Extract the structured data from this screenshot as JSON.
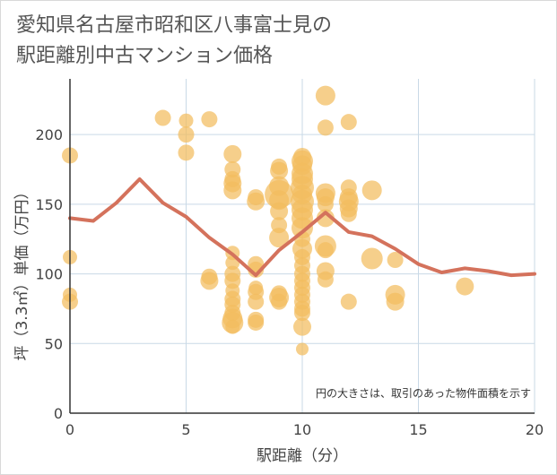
{
  "chart_data": {
    "type": "scatter",
    "title_lines": [
      "愛知県名古屋市昭和区八事富士見の",
      "駅距離別中古マンション価格"
    ],
    "xlabel": "駅距離（分）",
    "ylabel": "坪（3.3㎡）単価（万円）",
    "xlim": [
      0,
      20
    ],
    "ylim": [
      0,
      240
    ],
    "xticks": [
      0,
      5,
      10,
      15,
      20
    ],
    "yticks": [
      0,
      50,
      100,
      150,
      200
    ],
    "grid": true,
    "note": "円の大きさは、取引のあった物件面積を示す",
    "colors": {
      "bubble": "#f3bd5e",
      "line": "#d4725c",
      "grid": "#c9d9e6",
      "axis": "#333333"
    },
    "series": [
      {
        "type": "bubble",
        "points": [
          {
            "x": 0,
            "y": 185,
            "s": 9
          },
          {
            "x": 0,
            "y": 112,
            "s": 8
          },
          {
            "x": 0,
            "y": 85,
            "s": 8
          },
          {
            "x": 0,
            "y": 80,
            "s": 9
          },
          {
            "x": 4,
            "y": 212,
            "s": 9
          },
          {
            "x": 5,
            "y": 210,
            "s": 8
          },
          {
            "x": 5,
            "y": 200,
            "s": 9
          },
          {
            "x": 5,
            "y": 187,
            "s": 9
          },
          {
            "x": 6,
            "y": 211,
            "s": 9
          },
          {
            "x": 6,
            "y": 98,
            "s": 9
          },
          {
            "x": 6,
            "y": 95,
            "s": 10
          },
          {
            "x": 7,
            "y": 186,
            "s": 10
          },
          {
            "x": 7,
            "y": 175,
            "s": 9
          },
          {
            "x": 7,
            "y": 168,
            "s": 9
          },
          {
            "x": 7,
            "y": 165,
            "s": 10
          },
          {
            "x": 7,
            "y": 160,
            "s": 10
          },
          {
            "x": 7,
            "y": 115,
            "s": 8
          },
          {
            "x": 7,
            "y": 108,
            "s": 8
          },
          {
            "x": 7,
            "y": 100,
            "s": 9
          },
          {
            "x": 7,
            "y": 95,
            "s": 9
          },
          {
            "x": 7,
            "y": 88,
            "s": 8
          },
          {
            "x": 7,
            "y": 82,
            "s": 9
          },
          {
            "x": 7,
            "y": 78,
            "s": 9
          },
          {
            "x": 7,
            "y": 72,
            "s": 9
          },
          {
            "x": 7,
            "y": 68,
            "s": 11
          },
          {
            "x": 7,
            "y": 65,
            "s": 12
          },
          {
            "x": 7,
            "y": 62,
            "s": 8
          },
          {
            "x": 8,
            "y": 155,
            "s": 9
          },
          {
            "x": 8,
            "y": 152,
            "s": 10
          },
          {
            "x": 8,
            "y": 107,
            "s": 9
          },
          {
            "x": 8,
            "y": 103,
            "s": 9
          },
          {
            "x": 8,
            "y": 90,
            "s": 8
          },
          {
            "x": 8,
            "y": 87,
            "s": 9
          },
          {
            "x": 8,
            "y": 80,
            "s": 9
          },
          {
            "x": 8,
            "y": 67,
            "s": 9
          },
          {
            "x": 8,
            "y": 65,
            "s": 9
          },
          {
            "x": 9,
            "y": 177,
            "s": 9
          },
          {
            "x": 9,
            "y": 174,
            "s": 10
          },
          {
            "x": 9,
            "y": 163,
            "s": 11
          },
          {
            "x": 9,
            "y": 157,
            "s": 16
          },
          {
            "x": 9,
            "y": 153,
            "s": 11
          },
          {
            "x": 9,
            "y": 145,
            "s": 10
          },
          {
            "x": 9,
            "y": 135,
            "s": 9
          },
          {
            "x": 9,
            "y": 126,
            "s": 11
          },
          {
            "x": 9,
            "y": 86,
            "s": 9
          },
          {
            "x": 9,
            "y": 83,
            "s": 11
          },
          {
            "x": 9,
            "y": 80,
            "s": 9
          },
          {
            "x": 10,
            "y": 184,
            "s": 10
          },
          {
            "x": 10,
            "y": 181,
            "s": 12
          },
          {
            "x": 10,
            "y": 178,
            "s": 11
          },
          {
            "x": 10,
            "y": 172,
            "s": 12
          },
          {
            "x": 10,
            "y": 168,
            "s": 12
          },
          {
            "x": 10,
            "y": 162,
            "s": 13
          },
          {
            "x": 10,
            "y": 157,
            "s": 11
          },
          {
            "x": 10,
            "y": 152,
            "s": 13
          },
          {
            "x": 10,
            "y": 146,
            "s": 12
          },
          {
            "x": 10,
            "y": 140,
            "s": 12
          },
          {
            "x": 10,
            "y": 133,
            "s": 12
          },
          {
            "x": 10,
            "y": 125,
            "s": 9
          },
          {
            "x": 10,
            "y": 118,
            "s": 11
          },
          {
            "x": 10,
            "y": 112,
            "s": 9
          },
          {
            "x": 10,
            "y": 106,
            "s": 9
          },
          {
            "x": 10,
            "y": 100,
            "s": 9
          },
          {
            "x": 10,
            "y": 95,
            "s": 9
          },
          {
            "x": 10,
            "y": 90,
            "s": 9
          },
          {
            "x": 10,
            "y": 85,
            "s": 9
          },
          {
            "x": 10,
            "y": 80,
            "s": 9
          },
          {
            "x": 10,
            "y": 75,
            "s": 9
          },
          {
            "x": 10,
            "y": 72,
            "s": 9
          },
          {
            "x": 10,
            "y": 62,
            "s": 10
          },
          {
            "x": 10,
            "y": 46,
            "s": 7
          },
          {
            "x": 11,
            "y": 228,
            "s": 11
          },
          {
            "x": 11,
            "y": 205,
            "s": 9
          },
          {
            "x": 11,
            "y": 158,
            "s": 11
          },
          {
            "x": 11,
            "y": 155,
            "s": 10
          },
          {
            "x": 11,
            "y": 150,
            "s": 9
          },
          {
            "x": 11,
            "y": 140,
            "s": 10
          },
          {
            "x": 11,
            "y": 120,
            "s": 12
          },
          {
            "x": 11,
            "y": 117,
            "s": 9
          },
          {
            "x": 11,
            "y": 102,
            "s": 10
          },
          {
            "x": 11,
            "y": 96,
            "s": 9
          },
          {
            "x": 12,
            "y": 209,
            "s": 9
          },
          {
            "x": 12,
            "y": 162,
            "s": 9
          },
          {
            "x": 12,
            "y": 155,
            "s": 10
          },
          {
            "x": 12,
            "y": 152,
            "s": 11
          },
          {
            "x": 12,
            "y": 147,
            "s": 10
          },
          {
            "x": 12,
            "y": 143,
            "s": 9
          },
          {
            "x": 12,
            "y": 80,
            "s": 9
          },
          {
            "x": 13,
            "y": 160,
            "s": 11
          },
          {
            "x": 13,
            "y": 111,
            "s": 12
          },
          {
            "x": 14,
            "y": 110,
            "s": 9
          },
          {
            "x": 14,
            "y": 85,
            "s": 11
          },
          {
            "x": 14,
            "y": 80,
            "s": 10
          },
          {
            "x": 17,
            "y": 91,
            "s": 10
          }
        ]
      },
      {
        "type": "line",
        "x": [
          0,
          1,
          2,
          3,
          4,
          5,
          6,
          7,
          8,
          9,
          10,
          11,
          12,
          13,
          14,
          15,
          16,
          17,
          18,
          19,
          20
        ],
        "y": [
          140,
          138,
          151,
          168,
          151,
          141,
          126,
          114,
          99,
          117,
          130,
          144,
          130,
          127,
          118,
          107,
          101,
          104,
          102,
          99,
          100
        ]
      }
    ]
  }
}
